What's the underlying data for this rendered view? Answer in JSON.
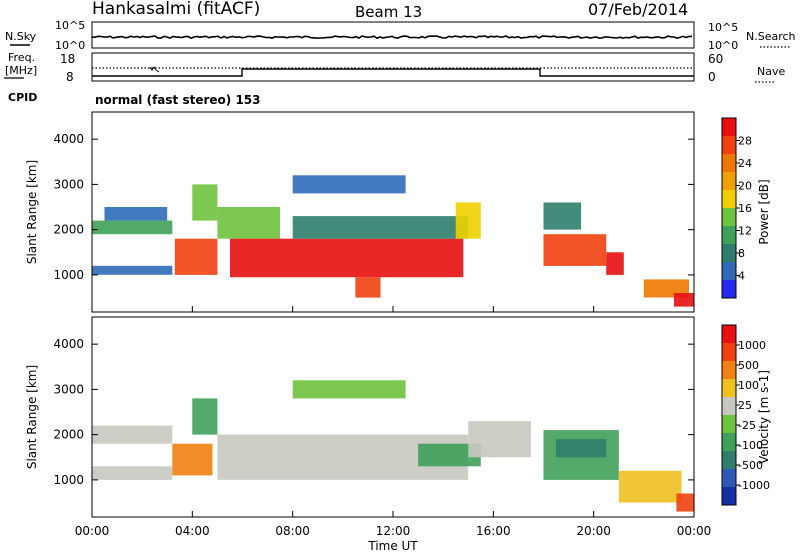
{
  "header": {
    "station": "Hankasalmi (fitACF)",
    "beam": "Beam 13",
    "date": "07/Feb/2014"
  },
  "top_panels": {
    "nsky_label": "N.Sky",
    "nsky_ticks": [
      "10^5",
      "10^0"
    ],
    "nsearch_ticks": [
      "10^5",
      "10^0"
    ],
    "nsearch_label": "N.Search",
    "freq_label_line1": "Freq.",
    "freq_label_line2": "[MHz]",
    "freq_ticks": [
      "18",
      "8"
    ],
    "nave_ticks": [
      "60",
      "0"
    ],
    "nave_label": "Nave",
    "cpid_label": "CPID",
    "cpid_text": "normal (fast stereo) 153"
  },
  "colors": {
    "power_scale": [
      "#2828f0",
      "#2e6ab8",
      "#2f7e6c",
      "#3fa05a",
      "#6fc23e",
      "#f0d000",
      "#f0a000",
      "#f07800",
      "#f04010",
      "#e81010"
    ],
    "velocity_scale": [
      "#1430a0",
      "#2e58b8",
      "#2f7e6c",
      "#3fa05a",
      "#6fc23e",
      "#c8c8c0",
      "#f0c020",
      "#f08010",
      "#f04010",
      "#e81010"
    ]
  },
  "chart_data": [
    {
      "type": "heatmap",
      "panel": "power",
      "xlabel": "Time UT",
      "ylabel": "Slant Range [km]",
      "xlim": [
        "00:00",
        "24:00"
      ],
      "ylim": [
        180,
        4600
      ],
      "x_ticks": [
        "00:00",
        "04:00",
        "08:00",
        "12:00",
        "16:00",
        "20:00",
        "00:00"
      ],
      "y_ticks": [
        "1000",
        "2000",
        "3000",
        "4000"
      ],
      "colorbar_label": "Power [dB]",
      "colorbar_ticks": [
        "28",
        "24",
        "20",
        "16",
        "12",
        "8",
        "4"
      ],
      "regions": [
        {
          "t0": 0.0,
          "t1": 3.2,
          "r0": 1900,
          "r1": 2200,
          "level": 3
        },
        {
          "t0": 0.0,
          "t1": 3.2,
          "r0": 1000,
          "r1": 1200,
          "level": 1
        },
        {
          "t0": 0.5,
          "t1": 3.0,
          "r0": 2200,
          "r1": 2500,
          "level": 1
        },
        {
          "t0": 3.3,
          "t1": 5.0,
          "r0": 1000,
          "r1": 1800,
          "level": 8
        },
        {
          "t0": 4.0,
          "t1": 5.0,
          "r0": 2200,
          "r1": 3000,
          "level": 4
        },
        {
          "t0": 5.0,
          "t1": 7.5,
          "r0": 1800,
          "r1": 2500,
          "level": 4
        },
        {
          "t0": 5.5,
          "t1": 14.8,
          "r0": 950,
          "r1": 1800,
          "level": 9
        },
        {
          "t0": 10.5,
          "t1": 11.5,
          "r0": 500,
          "r1": 950,
          "level": 8
        },
        {
          "t0": 8.0,
          "t1": 15.0,
          "r0": 1800,
          "r1": 2300,
          "level": 2
        },
        {
          "t0": 14.5,
          "t1": 15.5,
          "r0": 1800,
          "r1": 2600,
          "level": 5
        },
        {
          "t0": 8.0,
          "t1": 12.5,
          "r0": 2800,
          "r1": 3200,
          "level": 1
        },
        {
          "t0": 18.0,
          "t1": 20.5,
          "r0": 1200,
          "r1": 1900,
          "level": 8
        },
        {
          "t0": 20.5,
          "t1": 21.2,
          "r0": 1000,
          "r1": 1500,
          "level": 9
        },
        {
          "t0": 22.0,
          "t1": 23.8,
          "r0": 500,
          "r1": 900,
          "level": 7
        },
        {
          "t0": 23.2,
          "t1": 24.0,
          "r0": 300,
          "r1": 600,
          "level": 9
        },
        {
          "t0": 18.0,
          "t1": 19.5,
          "r0": 2000,
          "r1": 2600,
          "level": 2
        }
      ]
    },
    {
      "type": "heatmap",
      "panel": "velocity",
      "xlabel": "Time UT",
      "ylabel": "Slant Range [km]",
      "xlim": [
        "00:00",
        "24:00"
      ],
      "ylim": [
        180,
        4600
      ],
      "x_ticks": [
        "00:00",
        "04:00",
        "08:00",
        "12:00",
        "16:00",
        "20:00",
        "00:00"
      ],
      "y_ticks": [
        "1000",
        "2000",
        "3000",
        "4000"
      ],
      "colorbar_label": "Velocity [m s-1]",
      "colorbar_ticks": [
        "1000",
        "500",
        "100",
        "25",
        "-25",
        "-100",
        "-500",
        "-1000"
      ],
      "regions": [
        {
          "t0": 0.0,
          "t1": 3.2,
          "r0": 1800,
          "r1": 2200,
          "level": 5
        },
        {
          "t0": 0.0,
          "t1": 3.2,
          "r0": 1000,
          "r1": 1300,
          "level": 5
        },
        {
          "t0": 3.2,
          "t1": 4.8,
          "r0": 1100,
          "r1": 1800,
          "level": 7
        },
        {
          "t0": 4.0,
          "t1": 5.0,
          "r0": 2000,
          "r1": 2800,
          "level": 3
        },
        {
          "t0": 5.0,
          "t1": 15.0,
          "r0": 1000,
          "r1": 2000,
          "level": 5
        },
        {
          "t0": 8.0,
          "t1": 12.5,
          "r0": 2800,
          "r1": 3200,
          "level": 4
        },
        {
          "t0": 13.0,
          "t1": 15.5,
          "r0": 1300,
          "r1": 1800,
          "level": 3
        },
        {
          "t0": 15.0,
          "t1": 17.5,
          "r0": 1500,
          "r1": 2300,
          "level": 5
        },
        {
          "t0": 18.0,
          "t1": 21.0,
          "r0": 1000,
          "r1": 2100,
          "level": 3
        },
        {
          "t0": 18.5,
          "t1": 20.5,
          "r0": 1500,
          "r1": 1900,
          "level": 2
        },
        {
          "t0": 21.0,
          "t1": 23.5,
          "r0": 500,
          "r1": 1200,
          "level": 6
        },
        {
          "t0": 23.3,
          "t1": 24.0,
          "r0": 300,
          "r1": 700,
          "level": 8
        }
      ]
    }
  ]
}
